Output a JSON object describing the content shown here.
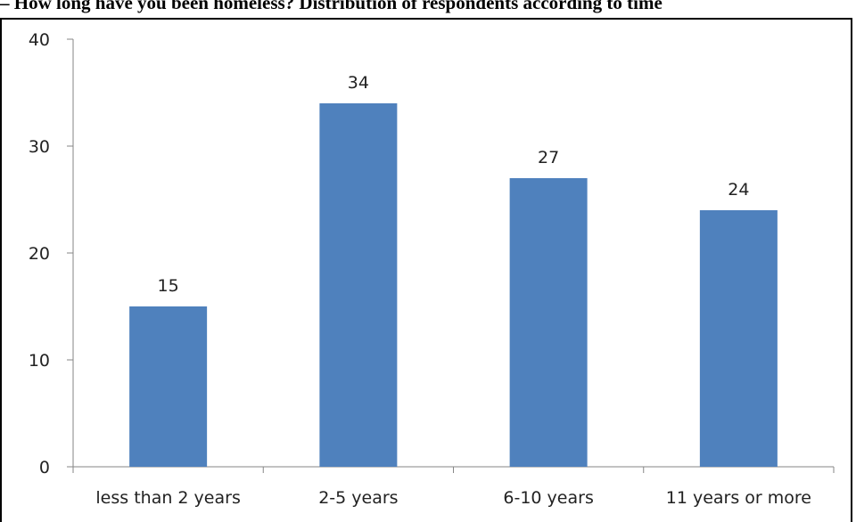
{
  "chart_data": {
    "type": "bar",
    "title": "– How long have you been homeless? Distribution of respondents according to time",
    "categories": [
      "less than 2 years",
      "2-5 years",
      "6-10 years",
      "11 years or more"
    ],
    "values": [
      15,
      34,
      27,
      24
    ],
    "data_labels": [
      "15",
      "34",
      "27",
      "24"
    ],
    "y_ticks": [
      0,
      10,
      20,
      30,
      40
    ],
    "ylim": [
      0,
      40
    ],
    "xlabel": "",
    "ylabel": "",
    "grid": false,
    "bar_color": "#4f81bd"
  }
}
